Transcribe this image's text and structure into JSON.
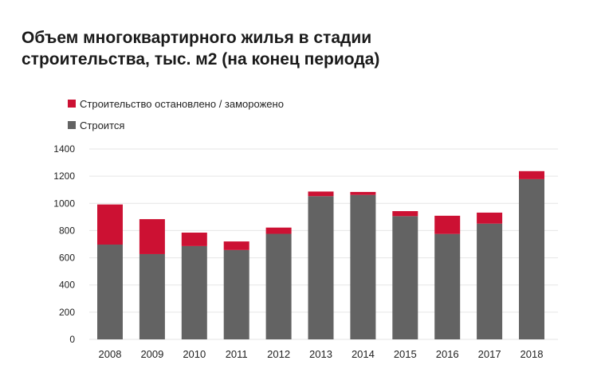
{
  "title_lines": [
    "Объем многоквартирного жилья в стадии",
    "строительства, тыс. м2 (на конец периода)"
  ],
  "colors": {
    "stopped": "#cc1133",
    "building": "#636363",
    "grid": "#e6e6e6"
  },
  "chart_data": {
    "type": "bar",
    "stacked": true,
    "title": "Объем многоквартирного жилья в стадии строительства, тыс. м2 (на конец периода)",
    "categories": [
      "2008",
      "2009",
      "2010",
      "2011",
      "2012",
      "2013",
      "2014",
      "2015",
      "2016",
      "2017",
      "2018"
    ],
    "series": [
      {
        "name": "Строится",
        "color": "#636363",
        "values": [
          697,
          627,
          686,
          657,
          776,
          1053,
          1062,
          906,
          775,
          851,
          1178
        ]
      },
      {
        "name": "Строительство остановлено / заморожено",
        "color": "#cc1133",
        "values": [
          295,
          257,
          99,
          63,
          46,
          34,
          22,
          37,
          134,
          81,
          59
        ]
      }
    ],
    "legend_order": [
      "Строительство остановлено / заморожено",
      "Строится"
    ],
    "y_ticks": [
      0,
      200,
      400,
      600,
      800,
      1000,
      1200,
      1400
    ],
    "ylim": [
      0,
      1400
    ],
    "grid": true,
    "legend_position": "top-left"
  }
}
